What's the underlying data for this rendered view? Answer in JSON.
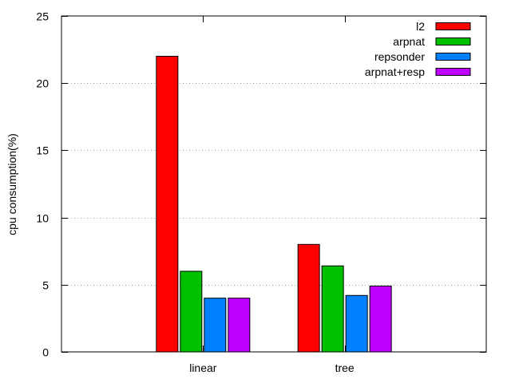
{
  "chart_data": {
    "type": "bar",
    "categories": [
      "linear",
      "tree"
    ],
    "series": [
      {
        "name": "l2",
        "values": [
          22.0,
          8.0
        ],
        "color": "#ff0000"
      },
      {
        "name": "arpnat",
        "values": [
          6.0,
          6.4
        ],
        "color": "#00c000"
      },
      {
        "name": "repsonder",
        "values": [
          4.0,
          4.2
        ],
        "color": "#0080ff"
      },
      {
        "name": "arpnat+resp",
        "values": [
          4.0,
          4.9
        ],
        "color": "#c000ff"
      }
    ],
    "title": "",
    "xlabel": "",
    "ylabel": "cpu consumption(%)",
    "ylim": [
      0,
      25
    ],
    "yticks": [
      0,
      5,
      10,
      15,
      20,
      25
    ],
    "grid": "horizontal dotted",
    "legend_position": "top-right"
  }
}
